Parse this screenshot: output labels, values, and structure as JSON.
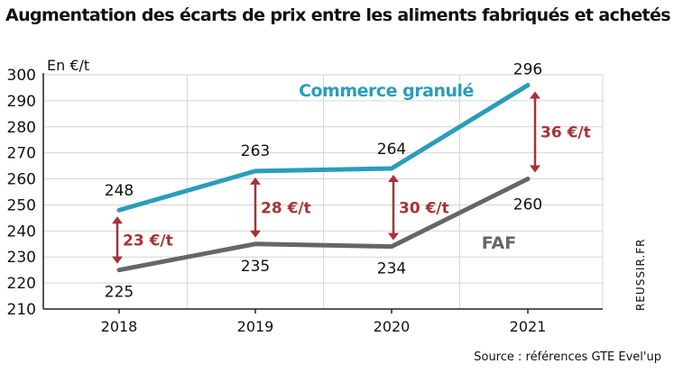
{
  "title": "Augmentation des écarts de prix entre les aliments fabriqués et achetés",
  "source": "Source : références GTE Evel'up",
  "credit": "REUSSIR.FR",
  "colors": {
    "commerce": "#2a9dba",
    "faf": "#666666",
    "gap": "#a83237",
    "grid": "#d6d6d6",
    "axis": "#222222"
  },
  "chart_data": {
    "type": "line",
    "title": "Augmentation des écarts de prix entre les aliments fabriqués et achetés",
    "ylabel": "En €/t",
    "xlabel": "",
    "categories": [
      "2018",
      "2019",
      "2020",
      "2021"
    ],
    "ylim": [
      210,
      300
    ],
    "yticks": [
      210,
      220,
      230,
      240,
      250,
      260,
      270,
      280,
      290,
      300
    ],
    "grid": true,
    "series": [
      {
        "name": "Commerce granulé",
        "values": [
          248,
          263,
          264,
          296
        ]
      },
      {
        "name": "FAF",
        "values": [
          225,
          235,
          234,
          260
        ]
      }
    ],
    "annotations": [
      "23 €/t",
      "28 €/t",
      "30 €/t",
      "36 €/t"
    ]
  }
}
